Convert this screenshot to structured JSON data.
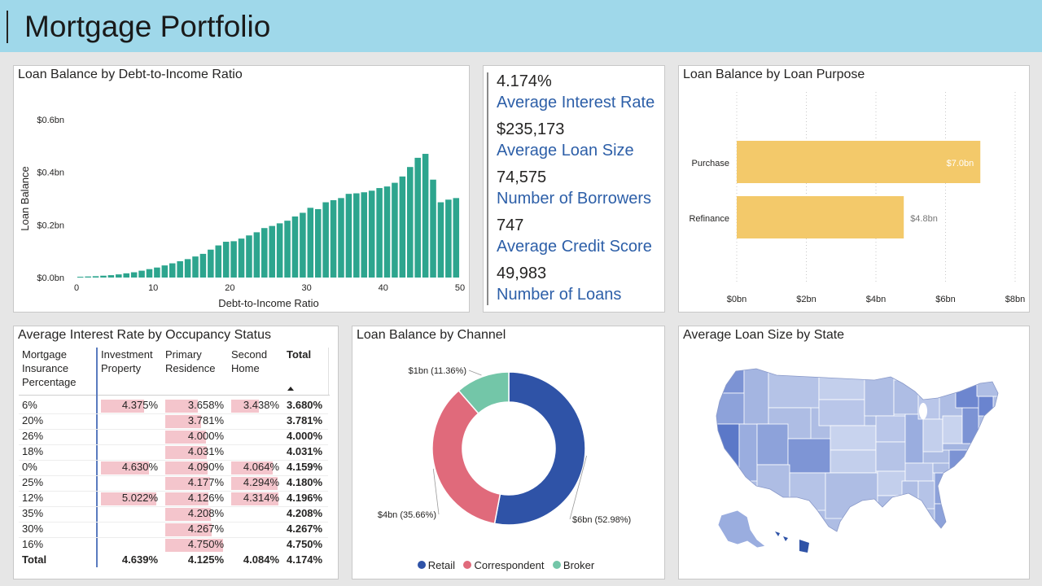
{
  "header": {
    "title": "Mortgage Portfolio"
  },
  "colors": {
    "header_bg": "#9fd8ea",
    "dti_bar": "#2da58e",
    "purpose_bar": "#f3c96a",
    "kpi_label": "#2d5fa8",
    "retail": "#2f53a7",
    "correspondent": "#e06a7b",
    "broker": "#73c6a8",
    "ir_bar": "#f4c5cc"
  },
  "dti_chart": {
    "title": "Loan Balance by Debt-to-Income Ratio",
    "chart_data": {
      "type": "bar",
      "xlabel": "Debt-to-Income Ratio",
      "ylabel": "Loan Balance",
      "x_ticks": [
        "0",
        "10",
        "20",
        "30",
        "40",
        "50"
      ],
      "y_ticks": [
        "$0.0bn",
        "$0.2bn",
        "$0.4bn",
        "$0.6bn"
      ],
      "ylim": [
        0,
        0.6
      ],
      "xlim": [
        0,
        50
      ],
      "x": [
        1,
        2,
        3,
        4,
        5,
        6,
        7,
        8,
        9,
        10,
        11,
        12,
        13,
        14,
        15,
        16,
        17,
        18,
        19,
        20,
        21,
        22,
        23,
        24,
        25,
        26,
        27,
        28,
        29,
        30,
        31,
        32,
        33,
        34,
        35,
        36,
        37,
        38,
        39,
        40,
        41,
        42,
        43,
        44,
        45,
        46,
        47,
        48,
        49,
        50
      ],
      "values": [
        0.003,
        0.004,
        0.005,
        0.007,
        0.009,
        0.012,
        0.016,
        0.02,
        0.026,
        0.032,
        0.038,
        0.046,
        0.054,
        0.062,
        0.07,
        0.08,
        0.09,
        0.106,
        0.122,
        0.136,
        0.138,
        0.148,
        0.16,
        0.172,
        0.188,
        0.196,
        0.206,
        0.216,
        0.232,
        0.246,
        0.265,
        0.26,
        0.286,
        0.294,
        0.302,
        0.318,
        0.32,
        0.324,
        0.33,
        0.34,
        0.346,
        0.36,
        0.384,
        0.42,
        0.455,
        0.47,
        0.372,
        0.286,
        0.296,
        0.302
      ]
    }
  },
  "kpis": [
    {
      "value": "4.174%",
      "label": "Average Interest Rate"
    },
    {
      "value": "$235,173",
      "label": "Average Loan Size"
    },
    {
      "value": "74,575",
      "label": "Number of Borrowers"
    },
    {
      "value": "747",
      "label": "Average Credit Score"
    },
    {
      "value": "49,983",
      "label": "Number of Loans"
    }
  ],
  "purpose_chart": {
    "title": "Loan Balance by Loan Purpose",
    "chart_data": {
      "type": "bar",
      "orientation": "horizontal",
      "categories": [
        "Purchase",
        "Refinance"
      ],
      "values": [
        7.0,
        4.8
      ],
      "data_labels": [
        "$7.0bn",
        "$4.8bn"
      ],
      "x_ticks": [
        "$0bn",
        "$2bn",
        "$4bn",
        "$6bn",
        "$8bn"
      ],
      "xlim": [
        0,
        8
      ]
    }
  },
  "occupancy_table": {
    "title": "Average Interest Rate by Occupancy Status",
    "headers": {
      "row": "Mortgage Insurance Percentage",
      "col1": "Investment Property",
      "col2": "Primary Residence",
      "col3": "Second Home",
      "total": "Total"
    },
    "rows": [
      {
        "label": "6%",
        "investment": "4.375%",
        "primary": "3.658%",
        "second": "3.438%",
        "total": "3.680%"
      },
      {
        "label": "20%",
        "investment": "",
        "primary": "3.781%",
        "second": "",
        "total": "3.781%"
      },
      {
        "label": "26%",
        "investment": "",
        "primary": "4.000%",
        "second": "",
        "total": "4.000%"
      },
      {
        "label": "18%",
        "investment": "",
        "primary": "4.031%",
        "second": "",
        "total": "4.031%"
      },
      {
        "label": "0%",
        "investment": "4.630%",
        "primary": "4.090%",
        "second": "4.064%",
        "total": "4.159%"
      },
      {
        "label": "25%",
        "investment": "",
        "primary": "4.177%",
        "second": "4.294%",
        "total": "4.180%"
      },
      {
        "label": "12%",
        "investment": "5.022%",
        "primary": "4.126%",
        "second": "4.314%",
        "total": "4.196%"
      },
      {
        "label": "35%",
        "investment": "",
        "primary": "4.208%",
        "second": "",
        "total": "4.208%"
      },
      {
        "label": "30%",
        "investment": "",
        "primary": "4.267%",
        "second": "",
        "total": "4.267%"
      },
      {
        "label": "16%",
        "investment": "",
        "primary": "4.750%",
        "second": "",
        "total": "4.750%"
      }
    ],
    "total_row": {
      "label": "Total",
      "investment": "4.639%",
      "primary": "4.125%",
      "second": "4.084%",
      "total": "4.174%"
    }
  },
  "channel_chart": {
    "title": "Loan Balance by Channel",
    "chart_data": {
      "type": "pie",
      "donut": true,
      "categories": [
        "Retail",
        "Correspondent",
        "Broker"
      ],
      "values": [
        52.98,
        35.66,
        11.36
      ],
      "data_labels": [
        "$6bn (52.98%)",
        "$4bn (35.66%)",
        "$1bn (11.36%)"
      ]
    }
  },
  "state_map": {
    "title": "Average Loan Size by State"
  }
}
